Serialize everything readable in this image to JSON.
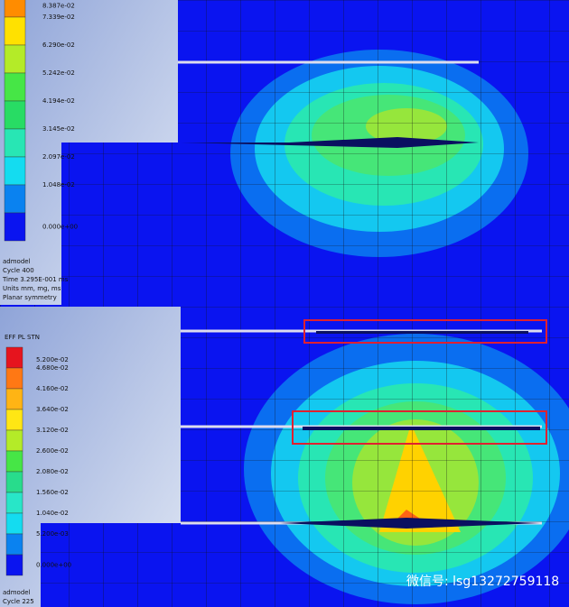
{
  "top_panel": {
    "legend_labels": [
      "8.387e-02",
      "7.339e-02",
      "6.290e-02",
      "5.242e-02",
      "4.194e-02",
      "3.145e-02",
      "2.097e-02",
      "1.048e-02",
      "0.000e+00"
    ],
    "info": [
      "admodel",
      "Cycle 400",
      "Time 3.295E-001 ms",
      "Units mm, mg, ms",
      "Planar symmetry"
    ]
  },
  "bottom_panel": {
    "legend_title": "EFF PL STN",
    "legend_labels": [
      "5.200e-02",
      "4.680e-02",
      "4.160e-02",
      "3.640e-02",
      "3.120e-02",
      "2.600e-02",
      "2.080e-02",
      "1.560e-02",
      "1.040e-02",
      "5.200e-03",
      "0.000e+00"
    ],
    "info": [
      "admodel",
      "Cycle 225"
    ]
  },
  "watermark": "微信号: lsg13272759118"
}
